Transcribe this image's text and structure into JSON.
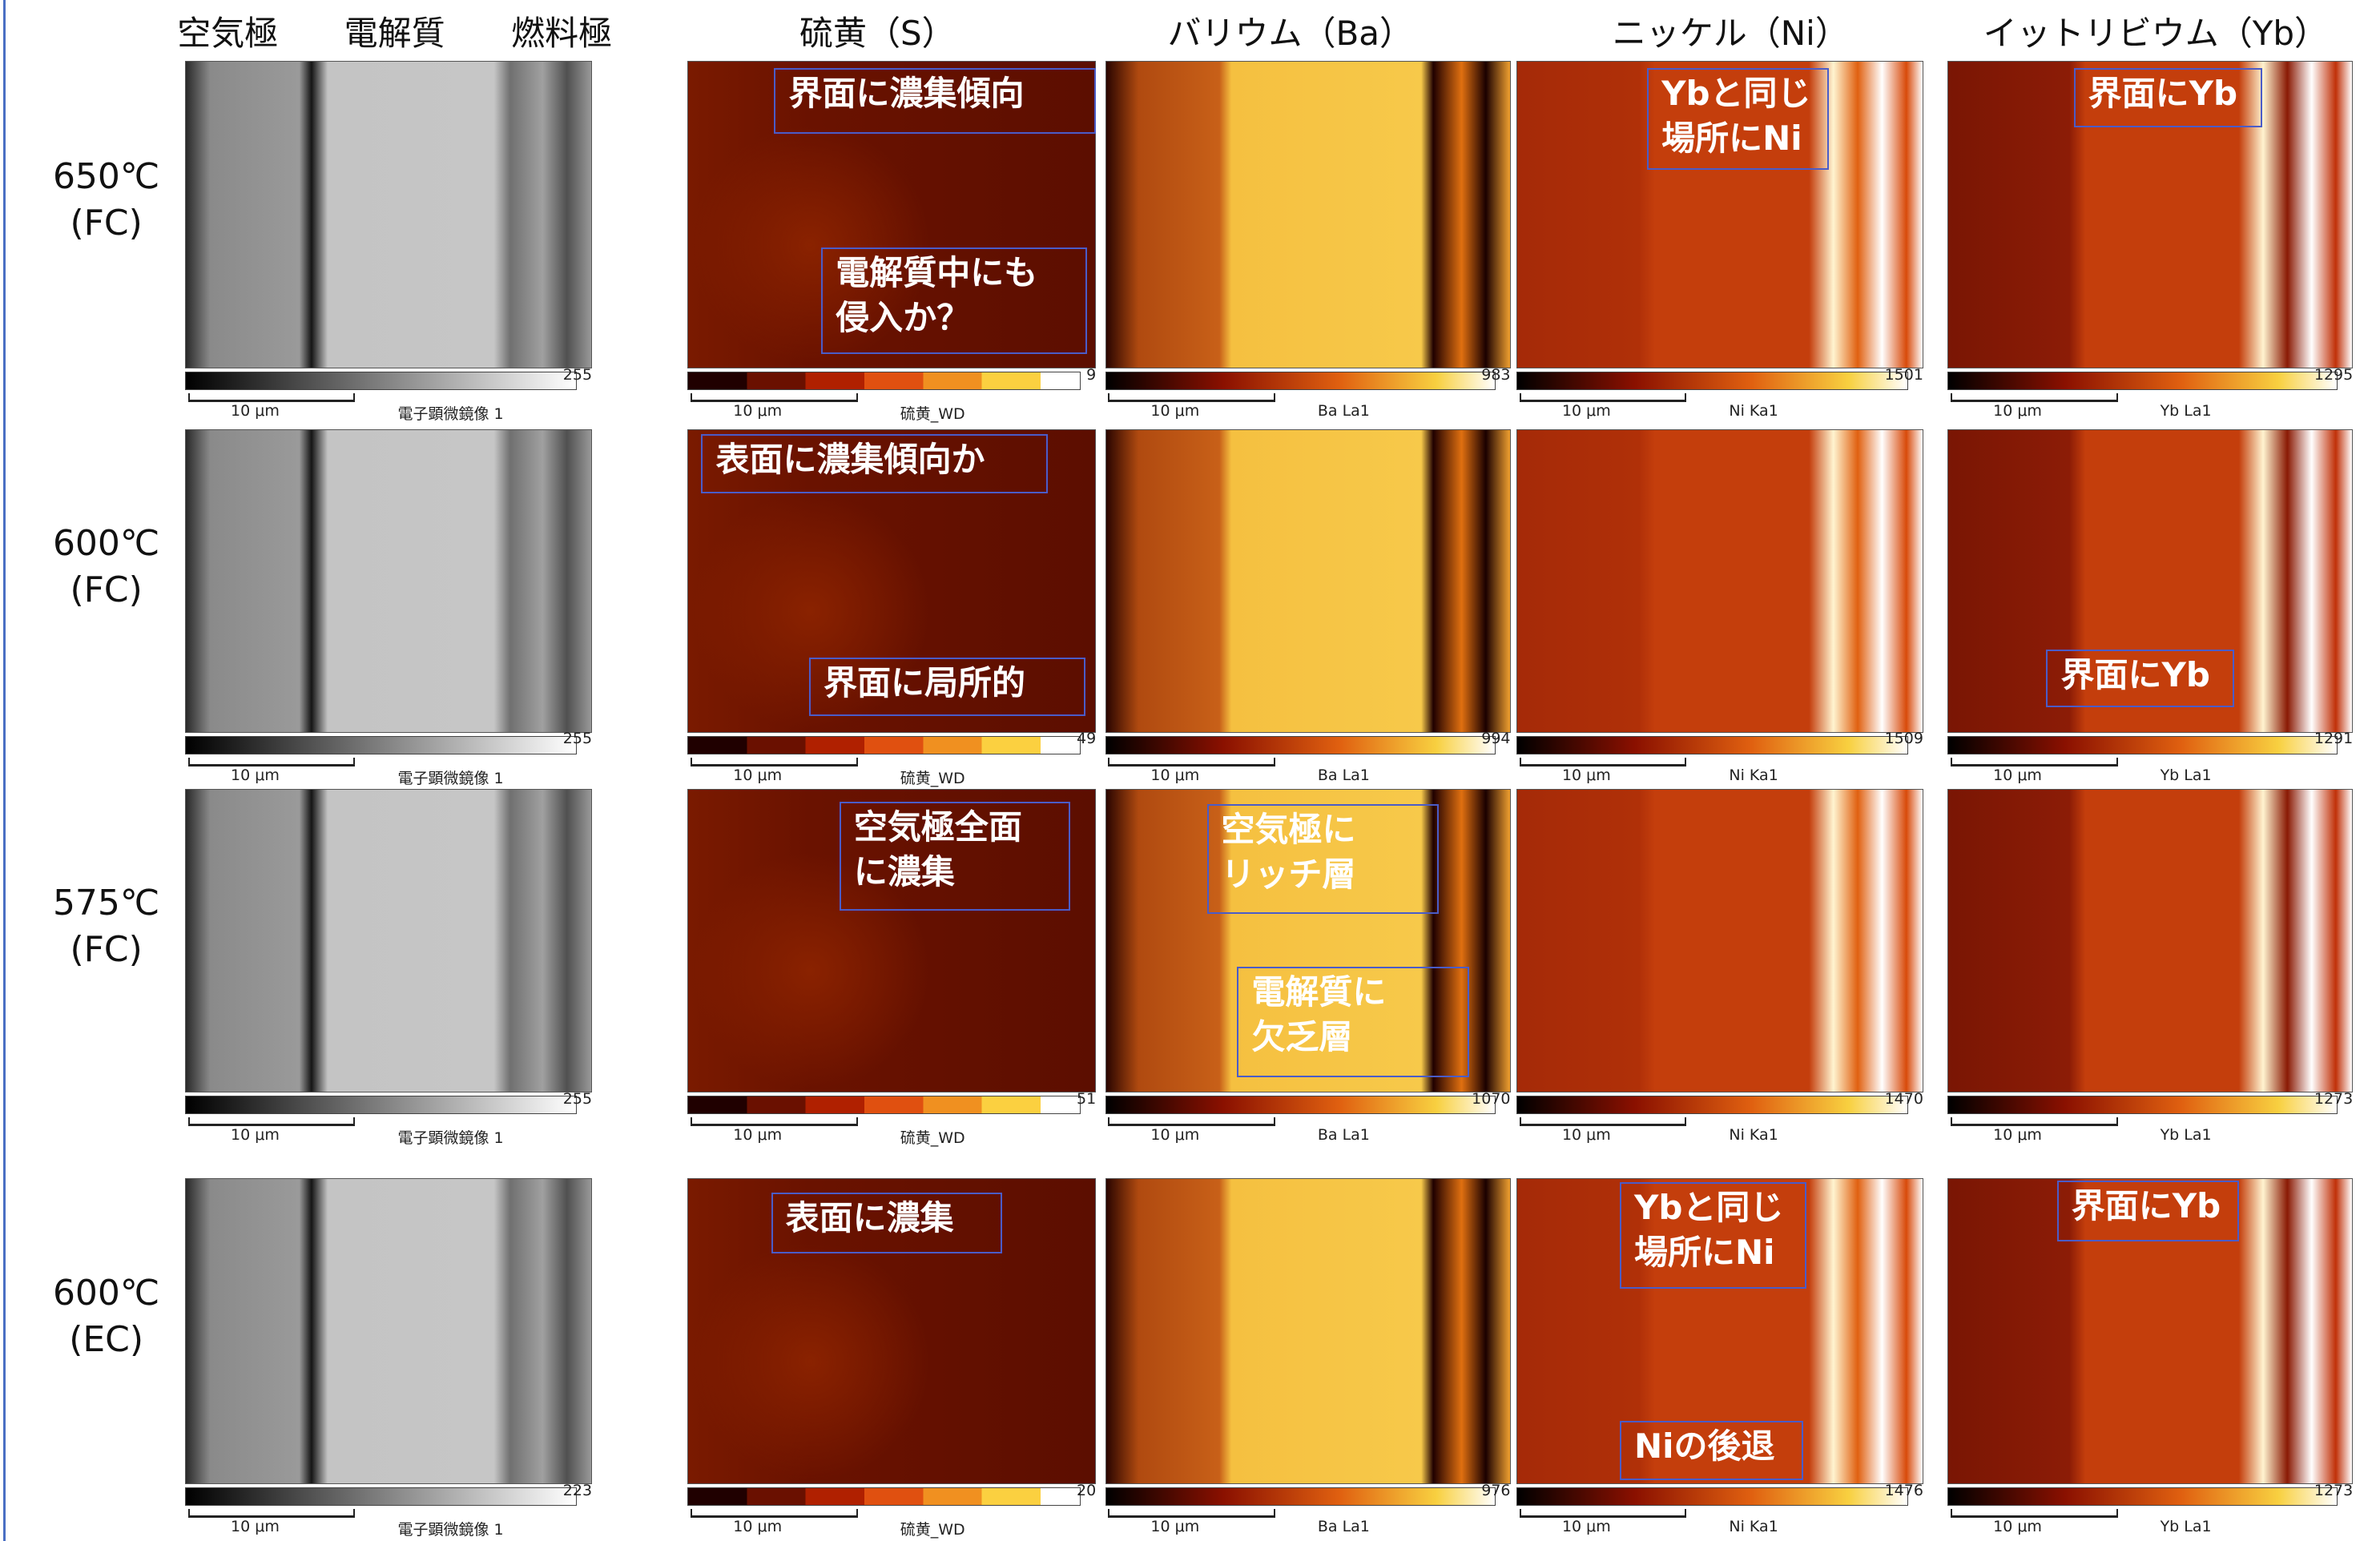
{
  "header": {
    "sem_columns": [
      "空気極",
      "電解質",
      "燃料極"
    ],
    "columns": [
      "硫黄（S）",
      "バリウム（Ba）",
      "ニッケル（Ni）",
      "イットリビウム（Yb）"
    ]
  },
  "rows": [
    {
      "label": [
        "650℃",
        "(FC)"
      ],
      "panels": [
        {
          "max": 255,
          "scale": "10 μm",
          "detector": "電子顕微鏡像 1",
          "annotations": []
        },
        {
          "max": 9,
          "scale": "10 μm",
          "detector": "硫黄_WD",
          "annotations": [
            "界面に濃集傾向",
            "電解質中にも\n侵入か？"
          ]
        },
        {
          "max": 983,
          "scale": "10 μm",
          "detector": "Ba La1",
          "annotations": []
        },
        {
          "max": 1501,
          "scale": "10 μm",
          "detector": "Ni Ka1",
          "annotations": [
            "Ybと同じ\n場所にNi"
          ]
        },
        {
          "max": 1295,
          "scale": "10 μm",
          "detector": "Yb La1",
          "annotations": [
            "界面にYb"
          ]
        }
      ]
    },
    {
      "label": [
        "600℃",
        "(FC)"
      ],
      "panels": [
        {
          "max": 255,
          "scale": "10 μm",
          "detector": "電子顕微鏡像 1",
          "annotations": []
        },
        {
          "max": 49,
          "scale": "10 μm",
          "detector": "硫黄_WD",
          "annotations": [
            "表面に濃集傾向か",
            "界面に局所的"
          ]
        },
        {
          "max": 994,
          "scale": "10 μm",
          "detector": "Ba La1",
          "annotations": []
        },
        {
          "max": 1509,
          "scale": "10 μm",
          "detector": "Ni Ka1",
          "annotations": []
        },
        {
          "max": 1291,
          "scale": "10 μm",
          "detector": "Yb La1",
          "annotations": [
            "界面にYb"
          ]
        }
      ]
    },
    {
      "label": [
        "575℃",
        "(FC)"
      ],
      "panels": [
        {
          "max": 255,
          "scale": "10 μm",
          "detector": "電子顕微鏡像 1",
          "annotations": []
        },
        {
          "max": 51,
          "scale": "10 μm",
          "detector": "硫黄_WD",
          "annotations": [
            "空気極全面\nに濃集"
          ]
        },
        {
          "max": 1070,
          "scale": "10 μm",
          "detector": "Ba La1",
          "annotations": [
            "空気極に\nリッチ層",
            "電解質に\n欠乏層"
          ]
        },
        {
          "max": 1470,
          "scale": "10 μm",
          "detector": "Ni Ka1",
          "annotations": []
        },
        {
          "max": 1273,
          "scale": "10 μm",
          "detector": "Yb La1",
          "annotations": []
        }
      ]
    },
    {
      "label": [
        "600℃",
        "(EC)"
      ],
      "panels": [
        {
          "max": 223,
          "scale": "10 μm",
          "detector": "電子顕微鏡像 1",
          "annotations": []
        },
        {
          "max": 20,
          "scale": "10 μm",
          "detector": "硫黄_WD",
          "annotations": [
            "表面に濃集"
          ]
        },
        {
          "max": 976,
          "scale": "10 μm",
          "detector": "Ba La1",
          "annotations": []
        },
        {
          "max": 1476,
          "scale": "10 μm",
          "detector": "Ni Ka1",
          "annotations": [
            "Ybと同じ\n場所にNi",
            "Niの後退"
          ]
        },
        {
          "max": 1273,
          "scale": "10 μm",
          "detector": "Yb La1",
          "annotations": [
            "界面にYb"
          ]
        }
      ]
    }
  ]
}
